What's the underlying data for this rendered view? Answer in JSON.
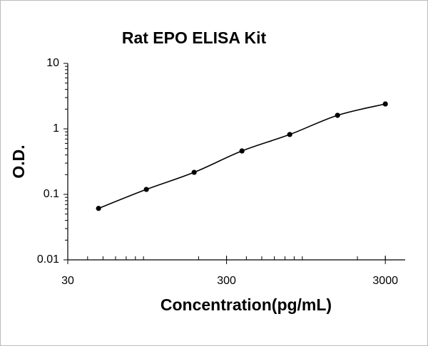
{
  "chart_data": {
    "type": "scatter",
    "title": "Rat EPO ELISA Kit",
    "x_label": "Concentration(pg/mL)",
    "y_label": "O.D.",
    "x_log": true,
    "y_log": true,
    "minor_ticks": true,
    "fit_curve": true,
    "color": "#000000",
    "x": [
      46.88,
      93.75,
      187.5,
      375,
      750,
      1500,
      3000
    ],
    "values": [
      0.061,
      0.119,
      0.217,
      0.46,
      0.82,
      1.61,
      2.4
    ],
    "xlim": [
      30,
      4000
    ],
    "xticks": [
      30,
      300,
      3000
    ],
    "ylim": [
      0.01,
      10
    ],
    "yticks": [
      0.01,
      0.1,
      1,
      10
    ]
  }
}
